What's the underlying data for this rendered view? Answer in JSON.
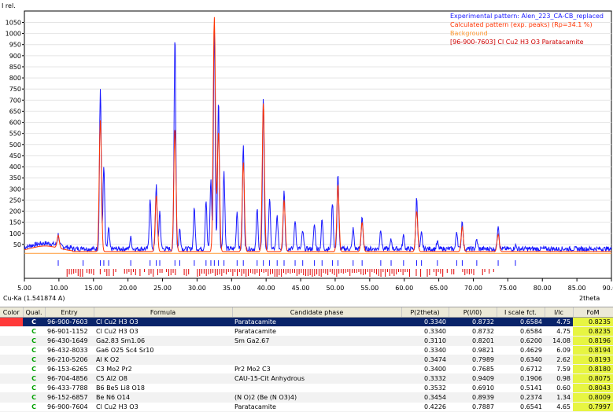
{
  "chart": {
    "y_axis_label": "I rel.",
    "x_axis_label": "2theta",
    "radiation_label": "Cu-Ka (1.541874 A)",
    "y_ticks": [
      "50",
      "100",
      "150",
      "200",
      "250",
      "300",
      "350",
      "400",
      "450",
      "500",
      "550",
      "600",
      "650",
      "700",
      "750",
      "800",
      "850",
      "900",
      "950",
      "1000",
      "1050"
    ],
    "x_ticks": [
      "5.00",
      "10.00",
      "15.00",
      "20.00",
      "25.00",
      "30.00",
      "35.00",
      "40.00",
      "45.00",
      "50.00",
      "55.00",
      "60.00",
      "65.00",
      "70.00",
      "75.00",
      "80.00",
      "85.00",
      "90.00"
    ],
    "legend": [
      {
        "label": "Experimental pattern: Alen_223_CA-CB_replaced",
        "color": "#1a1aff"
      },
      {
        "label": "Calculated pattern (exp. peaks) (Rp=34.1 %)",
        "color": "#ff3300"
      },
      {
        "label": "Background",
        "color": "#ff9933"
      },
      {
        "label": "[96-900-7603] Cl Cu2 H3 O3 Paratacamite",
        "color": "#cc0000"
      }
    ]
  },
  "chart_data": {
    "type": "line",
    "xlabel": "2theta",
    "ylabel": "I rel.",
    "xlim": [
      5,
      90
    ],
    "ylim": [
      0,
      1080
    ],
    "series": [
      {
        "name": "Experimental pattern: Alen_223_CA-CB_replaced",
        "color": "#1a1aff",
        "peaks": [
          [
            9.9,
            80
          ],
          [
            13.5,
            40
          ],
          [
            16.0,
            755
          ],
          [
            16.5,
            400
          ],
          [
            17.2,
            120
          ],
          [
            20.4,
            80
          ],
          [
            23.2,
            260
          ],
          [
            24.1,
            320
          ],
          [
            24.6,
            200
          ],
          [
            26.8,
            1000
          ],
          [
            27.5,
            120
          ],
          [
            29.6,
            210
          ],
          [
            31.3,
            250
          ],
          [
            32.0,
            340
          ],
          [
            32.5,
            1040
          ],
          [
            33.1,
            700
          ],
          [
            33.9,
            380
          ],
          [
            35.8,
            200
          ],
          [
            36.7,
            500
          ],
          [
            38.7,
            210
          ],
          [
            39.6,
            720
          ],
          [
            40.5,
            260
          ],
          [
            41.6,
            180
          ],
          [
            42.6,
            300
          ],
          [
            44.2,
            160
          ],
          [
            45.3,
            110
          ],
          [
            47.0,
            140
          ],
          [
            48.1,
            160
          ],
          [
            49.6,
            240
          ],
          [
            50.4,
            370
          ],
          [
            52.6,
            120
          ],
          [
            53.9,
            180
          ],
          [
            56.6,
            120
          ],
          [
            58.1,
            70
          ],
          [
            59.9,
            90
          ],
          [
            61.8,
            260
          ],
          [
            62.5,
            100
          ],
          [
            64.8,
            60
          ],
          [
            67.6,
            110
          ],
          [
            68.4,
            160
          ],
          [
            70.5,
            70
          ],
          [
            73.6,
            140
          ],
          [
            76.1,
            45
          ]
        ]
      },
      {
        "name": "Calculated pattern (exp. peaks) (Rp=34.1 %)",
        "color": "#ff3300",
        "peaks": [
          [
            9.9,
            75
          ],
          [
            16.0,
            610
          ],
          [
            24.1,
            270
          ],
          [
            26.8,
            575
          ],
          [
            32.5,
            1075
          ],
          [
            33.1,
            560
          ],
          [
            36.7,
            420
          ],
          [
            39.6,
            690
          ],
          [
            42.6,
            250
          ],
          [
            50.4,
            320
          ],
          [
            53.9,
            150
          ],
          [
            61.8,
            200
          ],
          [
            68.4,
            130
          ],
          [
            73.6,
            95
          ]
        ]
      },
      {
        "name": "Background",
        "color": "#ff9933",
        "values": [
          [
            5,
            10
          ],
          [
            90,
            10
          ]
        ]
      }
    ]
  },
  "table": {
    "columns": [
      "Color",
      "Qual.",
      "Entry",
      "Formula",
      "Candidate phase",
      "P(2theta)",
      "P(I/I0)",
      "I scale fct.",
      "I/Ic",
      "FoM"
    ],
    "rows": [
      {
        "color": "#ff3a3a",
        "qual": "C",
        "entry": "96-900-7603",
        "formula": "Cl Cu2 H3 O3",
        "phase": "Paratacamite",
        "p2": "0.3340",
        "pi": "0.8732",
        "isc": "0.6584",
        "iic": "4.75",
        "fom": "0.8235"
      },
      {
        "color": "",
        "qual": "C",
        "entry": "96-901-1152",
        "formula": "Cl Cu2 H3 O3",
        "phase": "Paratacamite",
        "p2": "0.3340",
        "pi": "0.8732",
        "isc": "0.6584",
        "iic": "4.75",
        "fom": "0.8235"
      },
      {
        "color": "",
        "qual": "C",
        "entry": "96-430-1649",
        "formula": "Ga2.83 Sm1.06",
        "phase": "Sm Ga2.67",
        "p2": "0.3110",
        "pi": "0.8201",
        "isc": "0.6200",
        "iic": "14.08",
        "fom": "0.8196"
      },
      {
        "color": "",
        "qual": "C",
        "entry": "96-432-8033",
        "formula": "Ga6 O25 Sc4 Sr10",
        "phase": "",
        "p2": "0.3340",
        "pi": "0.9821",
        "isc": "0.4629",
        "iic": "6.09",
        "fom": "0.8194"
      },
      {
        "color": "",
        "qual": "C",
        "entry": "96-210-5206",
        "formula": "Al K O2",
        "phase": "",
        "p2": "0.3474",
        "pi": "0.7989",
        "isc": "0.6340",
        "iic": "2.62",
        "fom": "0.8193"
      },
      {
        "color": "",
        "qual": "C",
        "entry": "96-153-6265",
        "formula": "C3 Mo2 Pr2",
        "phase": "Pr2 Mo2 C3",
        "p2": "0.3400",
        "pi": "0.7685",
        "isc": "0.6712",
        "iic": "7.59",
        "fom": "0.8180"
      },
      {
        "color": "",
        "qual": "C",
        "entry": "96-704-4856",
        "formula": "C5 Al2 O8",
        "phase": "CAU-15-Cit Anhydrous",
        "p2": "0.3332",
        "pi": "0.9409",
        "isc": "0.1906",
        "iic": "0.98",
        "fom": "0.8075"
      },
      {
        "color": "",
        "qual": "C",
        "entry": "96-433-7788",
        "formula": "B6 Be5 Li8 O18",
        "phase": "",
        "p2": "0.3532",
        "pi": "0.6910",
        "isc": "0.5141",
        "iic": "0.60",
        "fom": "0.8043"
      },
      {
        "color": "",
        "qual": "C",
        "entry": "96-152-6857",
        "formula": "Be N6 O14",
        "phase": "(N O)2 (Be (N O3)4)",
        "p2": "0.3454",
        "pi": "0.8939",
        "isc": "0.2374",
        "iic": "1.34",
        "fom": "0.8009"
      },
      {
        "color": "",
        "qual": "C",
        "entry": "96-900-7604",
        "formula": "Cl Cu2 H3 O3",
        "phase": "Paratacamite",
        "p2": "0.4226",
        "pi": "0.7887",
        "isc": "0.6541",
        "iic": "4.65",
        "fom": "0.7997"
      }
    ]
  }
}
